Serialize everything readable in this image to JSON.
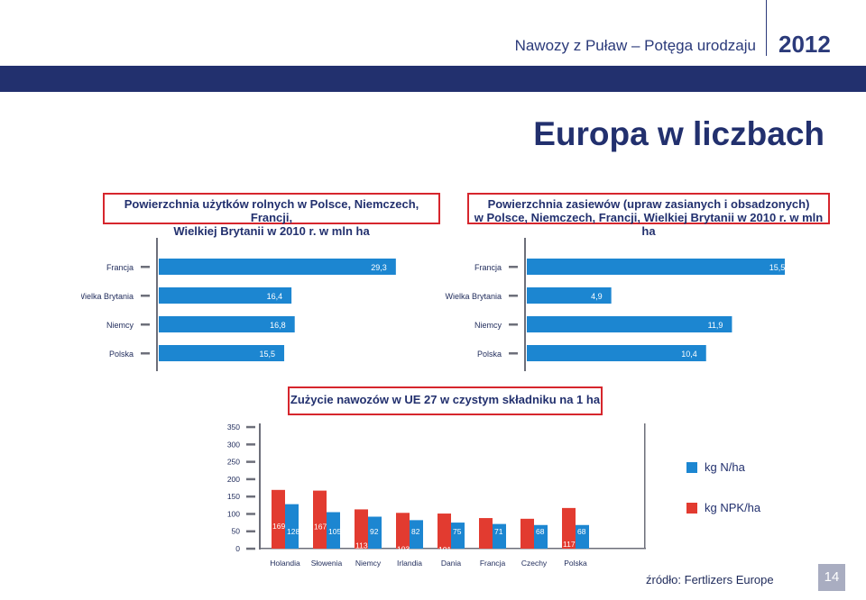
{
  "header": {
    "subtitle": "Nawozy z Puław – Potęga urodzaju",
    "year": "2012"
  },
  "page_title": "Europa w liczbach",
  "source": "źródło:  Fertlizers Europe",
  "page_number": "14",
  "colors": {
    "navy": "#22306e",
    "blue": "#1c86d1",
    "red": "#e23b30",
    "accent_border": "#d6262d"
  },
  "chart_data": [
    {
      "type": "bar",
      "orientation": "horizontal",
      "title": "Powierzchnia użytków rolnych w Polsce, Niemczech, Francji,\nWielkiej Brytanii w 2010 r. w mln ha",
      "title_line1": "Powierzchnia użytków rolnych w Polsce, Niemczech, Francji,",
      "title_line2": "Wielkiej Brytanii w 2010 r. w mln ha",
      "categories": [
        "Francja",
        "Wielka Brytania",
        "Niemcy",
        "Polska"
      ],
      "values": [
        29.3,
        16.4,
        16.8,
        15.5
      ],
      "labels": [
        "29,3",
        "16,4",
        "16,8",
        "15,5"
      ],
      "xlim": [
        0,
        34
      ]
    },
    {
      "type": "bar",
      "orientation": "horizontal",
      "title": "Powierzchnia zasiewów (upraw zasianych i obsadzonych)\nw Polsce, Niemczech, Francji, Wielkiej Brytanii w 2010 r. w mln ha",
      "title_line1": "Powierzchnia zasiewów (upraw zasianych i obsadzonych)",
      "title_line2": "w Polsce, Niemczech, Francji, Wielkiej Brytanii w 2010 r. w mln ha",
      "categories": [
        "Francja",
        "Wielka Brytania",
        "Niemcy",
        "Polska"
      ],
      "values": [
        15.5,
        4.9,
        11.9,
        10.4
      ],
      "labels": [
        "15,5",
        "4,9",
        "11,9",
        "10,4"
      ],
      "xlim": [
        0,
        18
      ]
    },
    {
      "type": "bar",
      "title": "Zużycie nawozów w UE 27 w czystym składniku na 1 ha",
      "categories": [
        "Holandia",
        "Słowenia",
        "Niemcy",
        "Irlandia",
        "Dania",
        "Francja",
        "Czechy",
        "Polska"
      ],
      "series": [
        {
          "name": "kg NPK/ha",
          "values": [
            169,
            167,
            113,
            103,
            101,
            88,
            86,
            117
          ],
          "labels": [
            "169",
            "167",
            "113",
            "103",
            "101",
            "88",
            "86",
            "117"
          ]
        },
        {
          "name": "kg N/ha",
          "values": [
            128,
            105,
            92,
            82,
            75,
            71,
            68,
            68
          ],
          "labels": [
            "128",
            "105",
            "92",
            "82",
            "75",
            "71",
            "68",
            "68"
          ]
        }
      ],
      "y_ticks": [
        0,
        50,
        100,
        150,
        200,
        250,
        300,
        350
      ],
      "y_tick_labels": [
        "0",
        "50",
        "100",
        "150",
        "200",
        "250",
        "300",
        "350"
      ],
      "ylim": [
        0,
        350
      ],
      "legend": [
        "kg N/ha",
        "kg NPK/ha"
      ],
      "legend_position": "right"
    }
  ]
}
